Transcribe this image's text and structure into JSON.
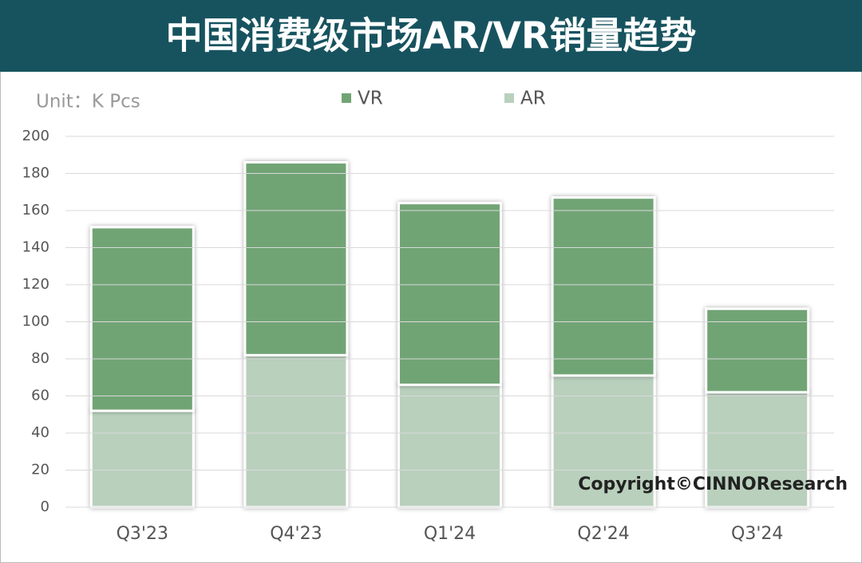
{
  "chart_data": {
    "type": "stacked_bar",
    "title": "中国消费级市场AR/VR销量趋势",
    "unit": "Unit：K Pcs",
    "annotation": "Copyright©CINNOResearch",
    "categories": [
      "Q3'23",
      "Q4'23",
      "Q1'24",
      "Q2'24",
      "Q3'24"
    ],
    "series": [
      {
        "name": "VR",
        "color": "#71a475",
        "values": [
          99,
          104,
          98,
          96,
          45
        ]
      },
      {
        "name": "AR",
        "color": "#b9d0bd",
        "values": [
          52,
          82,
          66,
          71,
          62
        ]
      }
    ],
    "ylim": [
      0,
      200
    ],
    "yticks": [
      0,
      20,
      40,
      60,
      80,
      100,
      120,
      140,
      160,
      180,
      200
    ],
    "grid": true
  }
}
